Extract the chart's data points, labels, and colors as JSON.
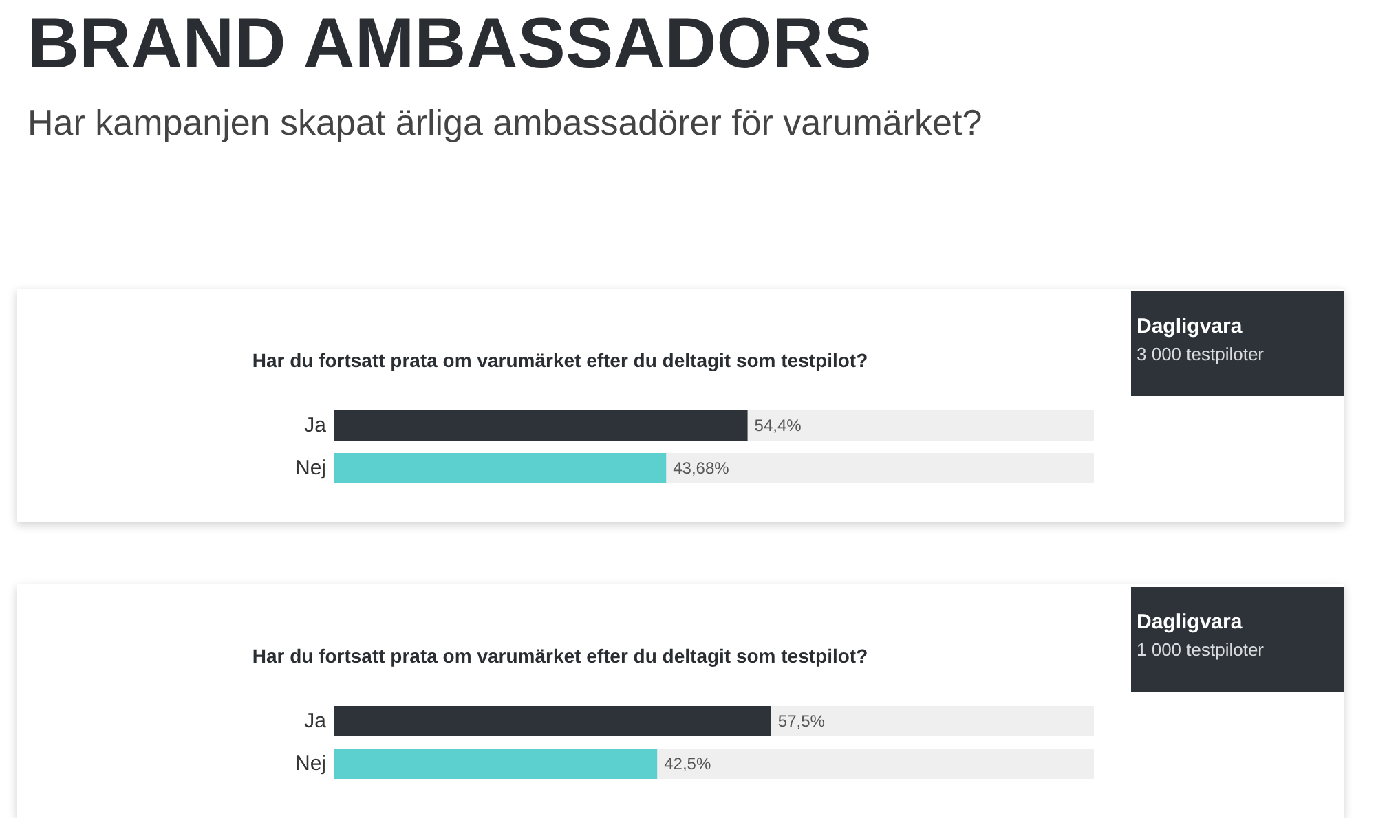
{
  "chart_data": [
    {
      "type": "other",
      "title": "BRAND AMBASSADORS",
      "subtitle": "Har kampanjen skapat ärliga ambassadörer för varumärket?"
    },
    {
      "type": "bar",
      "orientation": "horizontal",
      "title": "Har du fortsatt prata om varumärket efter du deltagit som testpilot?",
      "categories": [
        "Ja",
        "Nej"
      ],
      "values": [
        54.4,
        43.68
      ],
      "colors": [
        "#2d3339",
        "#5ccfcf"
      ],
      "value_labels": [
        "54,4%",
        "43,68%"
      ],
      "xlim": [
        0,
        100
      ],
      "annotations": [
        "Dagligvara",
        "3 000 testpiloter"
      ]
    },
    {
      "type": "bar",
      "orientation": "horizontal",
      "title": "Har du fortsatt prata om varumärket efter du deltagit som testpilot?",
      "categories": [
        "Ja",
        "Nej"
      ],
      "values": [
        57.5,
        42.5
      ],
      "colors": [
        "#2d3339",
        "#5ccfcf"
      ],
      "value_labels": [
        "57,5%",
        "42,5%"
      ],
      "xlim": [
        0,
        100
      ],
      "annotations": [
        "Dagligvara",
        "1 000 testpiloter"
      ]
    }
  ]
}
